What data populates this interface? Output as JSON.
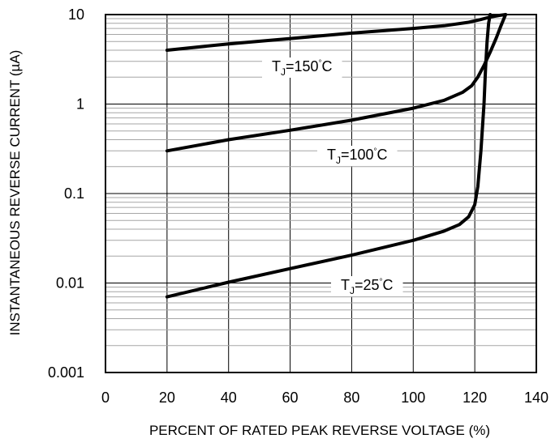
{
  "chart_data": {
    "type": "line",
    "title": "",
    "xlabel": "PERCENT OF RATED PEAK REVERSE VOLTAGE (%)",
    "ylabel": "INSTANTANEOUS REVERSE CURRENT (µA)",
    "xlim": [
      0,
      140
    ],
    "ylim": [
      0.001,
      10
    ],
    "yscale": "log",
    "grid": true,
    "x_ticks": [
      0,
      20,
      40,
      60,
      80,
      100,
      120,
      140
    ],
    "x_tick_labels": [
      "0",
      "20",
      "40",
      "60",
      "80",
      "100",
      "120",
      "140"
    ],
    "y_ticks": [
      0.001,
      0.01,
      0.1,
      1,
      10
    ],
    "y_tick_labels": [
      "0.001",
      "0.01",
      "0.1",
      "1",
      "10"
    ],
    "series": [
      {
        "label_main": "T",
        "label_sub": "J",
        "label_rest": "=150",
        "label_deg": "°",
        "label_unit": "C",
        "x": [
          20,
          40,
          60,
          80,
          100,
          110,
          118,
          122,
          125,
          128,
          130
        ],
        "y": [
          4.0,
          4.7,
          5.4,
          6.2,
          7.0,
          7.5,
          8.2,
          8.8,
          9.4,
          9.8,
          10.0
        ]
      },
      {
        "label_main": "T",
        "label_sub": "J",
        "label_rest": "=100",
        "label_deg": "°",
        "label_unit": "C",
        "x": [
          20,
          40,
          60,
          80,
          100,
          110,
          116,
          119,
          121,
          123,
          125,
          127,
          128.5,
          130
        ],
        "y": [
          0.3,
          0.4,
          0.51,
          0.66,
          0.9,
          1.1,
          1.35,
          1.6,
          2.0,
          2.7,
          3.8,
          5.5,
          7.5,
          10.0
        ]
      },
      {
        "label_main": "T",
        "label_sub": "J",
        "label_rest": "=25",
        "label_deg": "°",
        "label_unit": "C",
        "x": [
          20,
          40,
          60,
          80,
          100,
          110,
          115,
          118,
          120,
          121,
          122,
          123,
          123.5,
          124,
          124.5,
          125
        ],
        "y": [
          0.007,
          0.0102,
          0.0145,
          0.0205,
          0.03,
          0.038,
          0.045,
          0.055,
          0.075,
          0.12,
          0.3,
          1.0,
          2.5,
          5.0,
          8.0,
          10.0
        ]
      }
    ]
  }
}
